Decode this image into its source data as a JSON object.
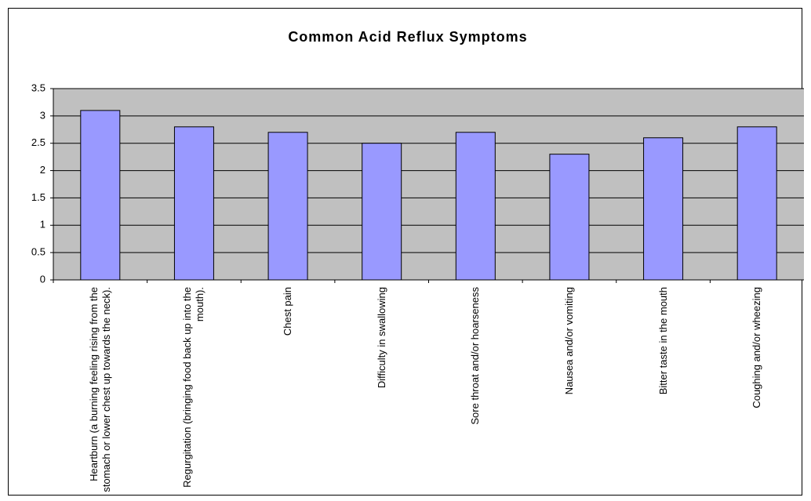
{
  "chart_data": {
    "type": "bar",
    "title": "Common Acid Reflux Symptoms",
    "categories": [
      "Heartburn (a burning feeling rising from the stomach or lower chest up towards the neck).",
      "Regurgitation (bringing food back up into the mouth).",
      "Chest pain",
      "Difficulty in swallowing",
      "Sore throat and/or hoarseness",
      "Nausea and/or vomiting",
      "Bitter taste in the mouth",
      "Coughing and/or wheezing"
    ],
    "values": [
      3.1,
      2.8,
      2.7,
      2.5,
      2.7,
      2.3,
      2.6,
      2.8
    ],
    "color": "#9999ff",
    "ylim": [
      0,
      3.5
    ],
    "yticks": [
      0,
      0.5,
      1,
      1.5,
      2,
      2.5,
      3,
      3.5
    ],
    "grid": true
  }
}
